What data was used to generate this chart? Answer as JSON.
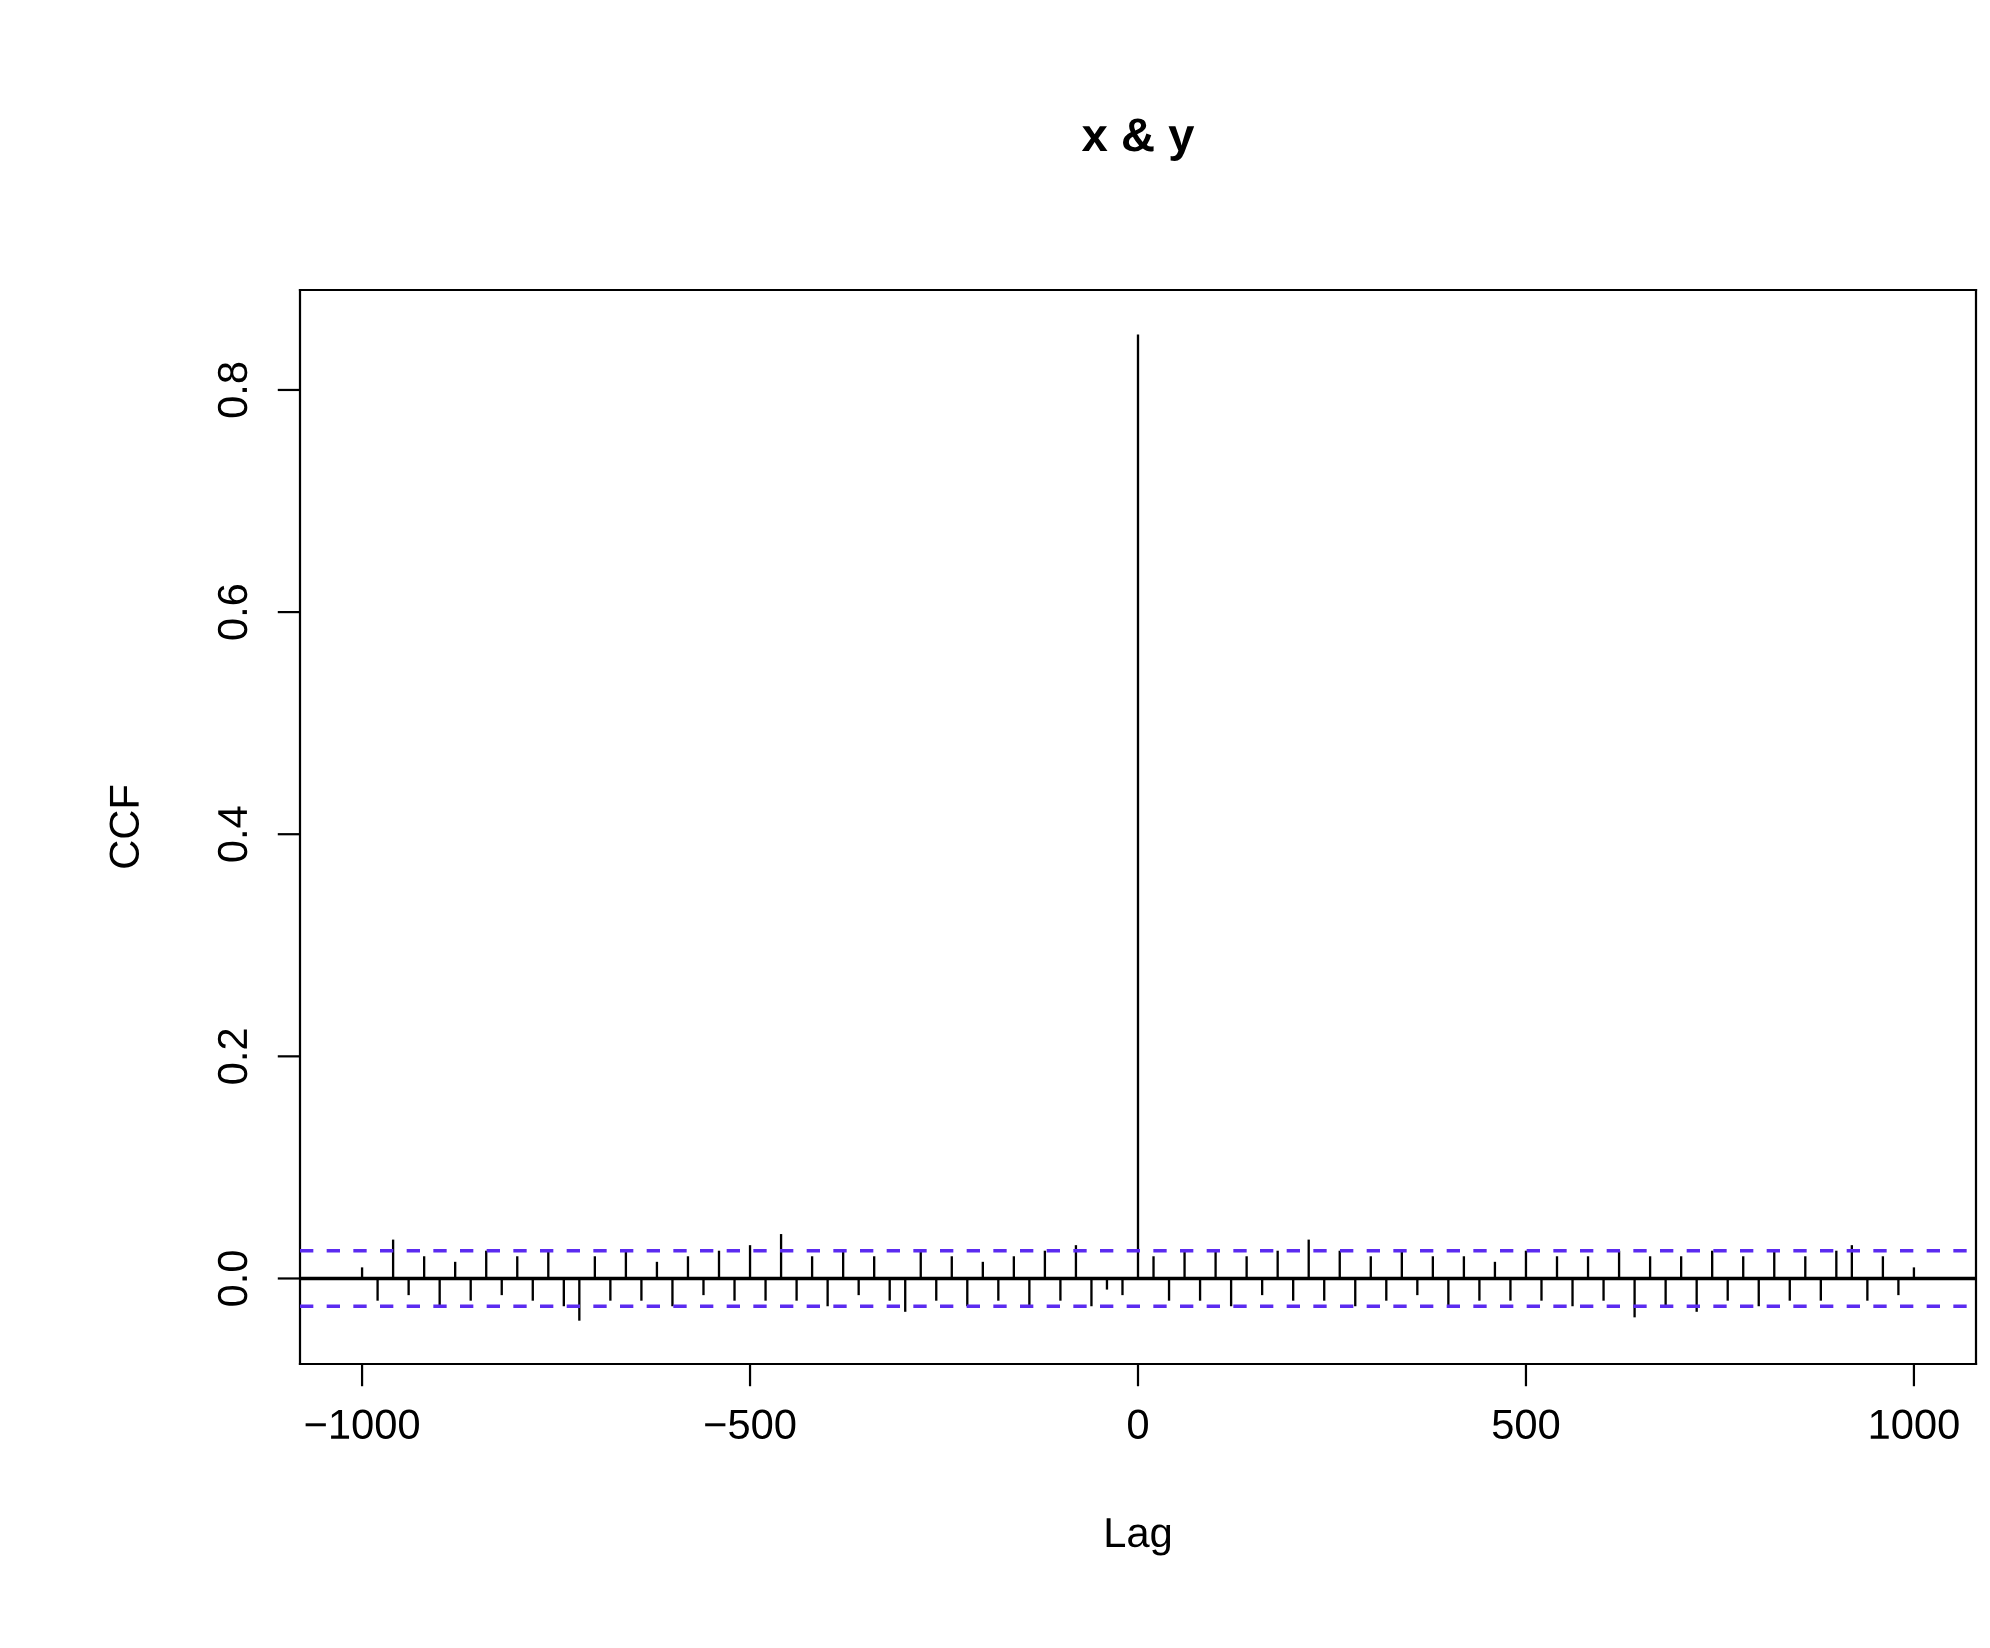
{
  "chart_data": {
    "type": "bar",
    "title": "x & y",
    "xlabel": "Lag",
    "ylabel": "CCF",
    "x": [
      -1000,
      -980,
      -960,
      -940,
      -920,
      -900,
      -880,
      -860,
      -840,
      -820,
      -800,
      -780,
      -760,
      -740,
      -720,
      -700,
      -680,
      -660,
      -640,
      -620,
      -600,
      -580,
      -560,
      -540,
      -520,
      -500,
      -480,
      -460,
      -440,
      -420,
      -400,
      -380,
      -360,
      -340,
      -320,
      -300,
      -280,
      -260,
      -240,
      -220,
      -200,
      -180,
      -160,
      -140,
      -120,
      -100,
      -80,
      -60,
      -40,
      -20,
      0,
      20,
      40,
      60,
      80,
      100,
      120,
      140,
      160,
      180,
      200,
      220,
      240,
      260,
      280,
      300,
      320,
      340,
      360,
      380,
      400,
      420,
      440,
      460,
      480,
      500,
      520,
      540,
      560,
      580,
      600,
      620,
      640,
      660,
      680,
      700,
      720,
      740,
      760,
      780,
      800,
      820,
      840,
      860,
      880,
      900,
      920,
      940,
      960,
      980,
      1000
    ],
    "values": [
      0.01,
      -0.02,
      0.035,
      -0.015,
      0.02,
      -0.025,
      0.015,
      -0.02,
      0.025,
      -0.015,
      0.02,
      -0.02,
      0.025,
      -0.025,
      -0.038,
      0.02,
      -0.02,
      0.025,
      -0.02,
      0.015,
      -0.025,
      0.02,
      -0.015,
      0.025,
      -0.02,
      0.03,
      -0.02,
      0.04,
      -0.02,
      0.02,
      -0.025,
      0.025,
      -0.015,
      0.02,
      -0.02,
      -0.03,
      0.025,
      -0.02,
      0.02,
      -0.025,
      0.015,
      -0.02,
      0.02,
      -0.025,
      0.025,
      -0.02,
      0.03,
      -0.025,
      -0.01,
      -0.015,
      0.85,
      0.02,
      -0.02,
      0.025,
      -0.02,
      0.025,
      -0.025,
      0.02,
      -0.015,
      0.025,
      -0.02,
      0.035,
      -0.02,
      0.025,
      -0.025,
      0.02,
      -0.02,
      0.025,
      -0.015,
      0.02,
      -0.025,
      0.02,
      -0.02,
      0.015,
      -0.02,
      0.025,
      -0.02,
      0.02,
      -0.025,
      0.02,
      -0.02,
      0.025,
      -0.035,
      0.02,
      -0.025,
      0.02,
      -0.03,
      0.025,
      -0.02,
      0.02,
      -0.025,
      0.025,
      -0.02,
      0.02,
      -0.02,
      0.025,
      0.03,
      -0.02,
      0.02,
      -0.015,
      0.01
    ],
    "color": "#000000",
    "xlim": [
      -1080,
      1080
    ],
    "ylim": [
      -0.077,
      0.89
    ],
    "xticks": [
      {
        "value": -1000,
        "label": "−1000"
      },
      {
        "value": -500,
        "label": "−500"
      },
      0,
      500,
      1000
    ],
    "yticks": [
      {
        "value": 0,
        "label": "0.0"
      },
      0.2,
      0.4,
      0.6,
      0.8
    ],
    "ref_lines": [
      {
        "axis": "y",
        "value": 0,
        "color": "#000000",
        "line_style": "solid"
      },
      {
        "axis": "y",
        "value": 0.025,
        "color": "#5b2bf0",
        "line_style": "dashed"
      },
      {
        "axis": "y",
        "value": -0.025,
        "color": "#5b2bf0",
        "line_style": "dashed"
      }
    ],
    "grid": false,
    "legend": false
  }
}
